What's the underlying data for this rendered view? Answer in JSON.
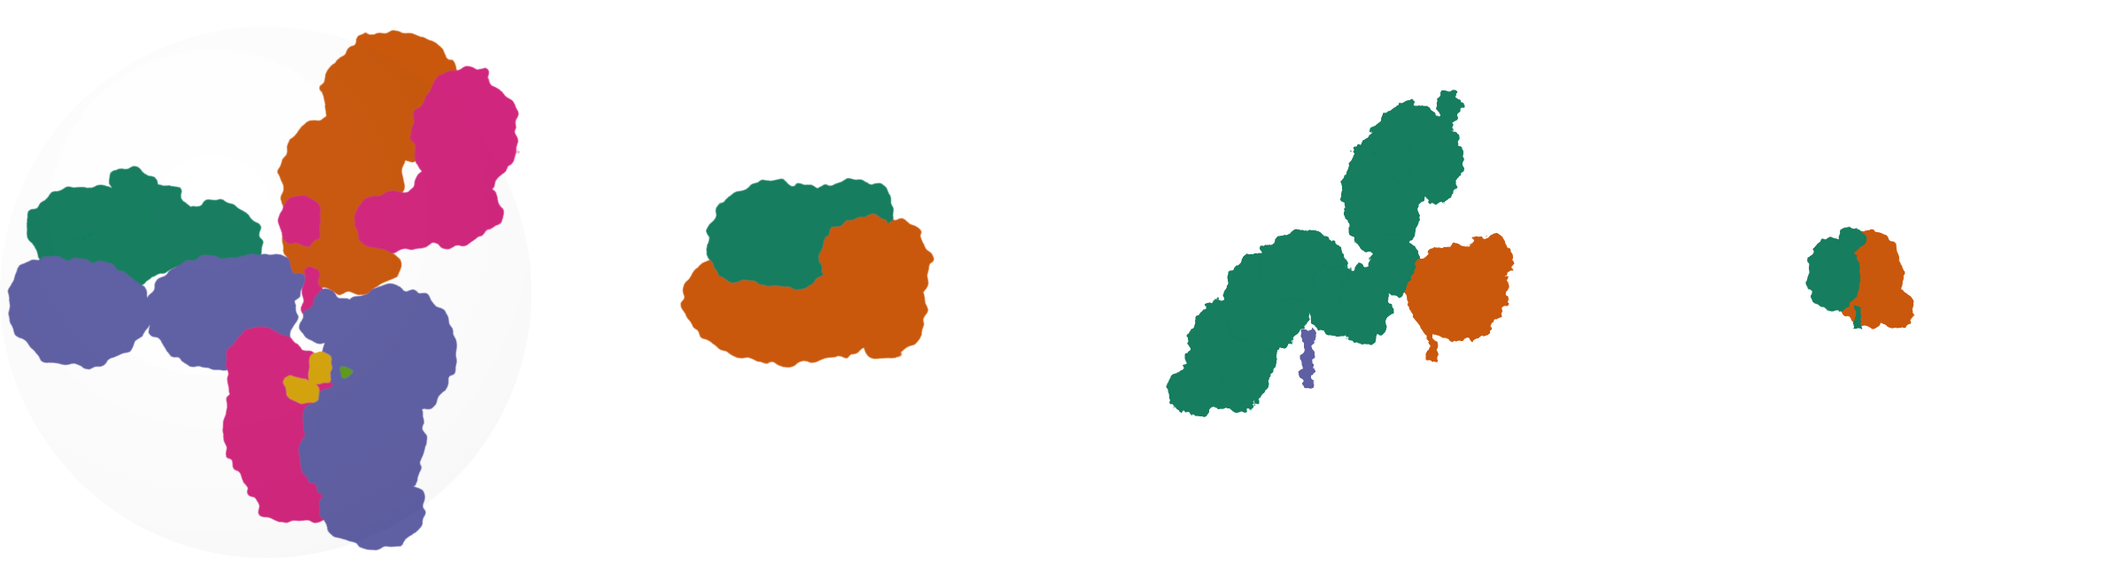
{
  "image": {
    "background": "#ffffff",
    "description_free": true
  },
  "palette": {
    "green": "#127d5f",
    "orange": "#c9590a",
    "magenta": "#d1277d",
    "purple": "#5e5fa4",
    "gold": "#d5a40b",
    "lime": "#5f9a1e"
  },
  "structures": [
    {
      "id": "structure-1",
      "chains": [
        "green",
        "purple",
        "orange",
        "magenta",
        "gold",
        "lime"
      ]
    },
    {
      "id": "structure-2",
      "chains": [
        "green",
        "orange"
      ]
    },
    {
      "id": "structure-3",
      "chains": [
        "green",
        "orange",
        "purple"
      ]
    },
    {
      "id": "structure-4",
      "chains": [
        "green",
        "orange"
      ]
    }
  ]
}
